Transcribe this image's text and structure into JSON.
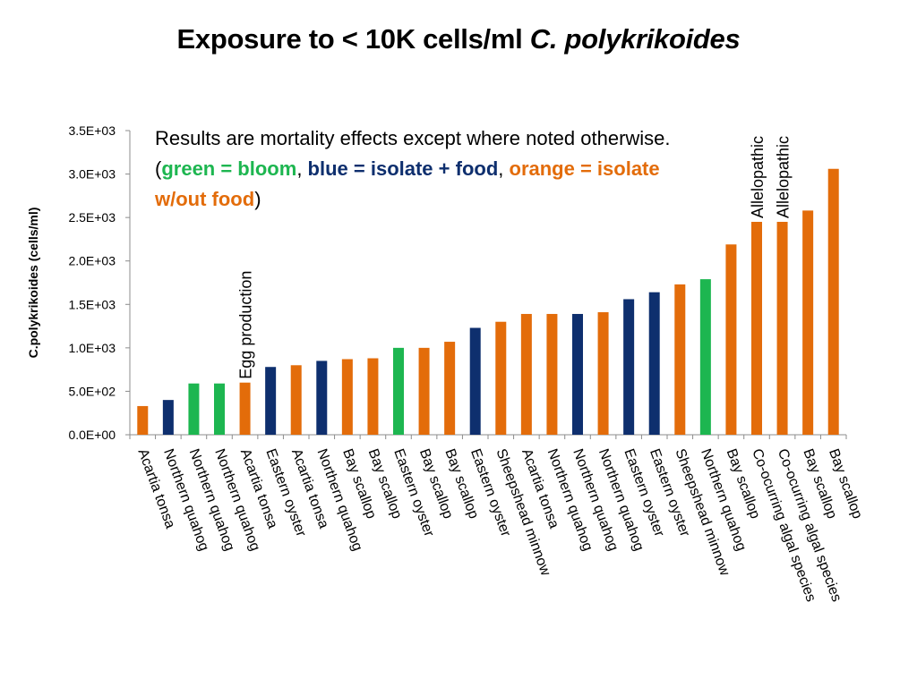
{
  "title": {
    "text": "Exposure to < 10K cells/ml ",
    "italic": "C. polykrikoides"
  },
  "note": {
    "line1": "Results are mortality effects except where noted otherwise.",
    "open_paren": "(",
    "green_text": "green  = bloom",
    "sep1": ", ",
    "blue_text": "blue = isolate + food",
    "sep2": ", ",
    "orange_text": "orange = isolate  w/out food",
    "close_paren": ")"
  },
  "colors": {
    "bloom": "#1db650",
    "isolate_food": "#0e2f6e",
    "isolate_no_food": "#e36c0a"
  },
  "chart_data": {
    "type": "bar",
    "ylabel": "C.polykrikoides (cells/ml)",
    "xlabel": "",
    "ylim": [
      0,
      3500
    ],
    "yticks": [
      {
        "value": 0,
        "label": "0.0E+00"
      },
      {
        "value": 500,
        "label": "5.0E+02"
      },
      {
        "value": 1000,
        "label": "1.0E+03"
      },
      {
        "value": 1500,
        "label": "1.5E+03"
      },
      {
        "value": 2000,
        "label": "2.0E+03"
      },
      {
        "value": 2500,
        "label": "2.5E+03"
      },
      {
        "value": 3000,
        "label": "3.0E+03"
      },
      {
        "value": 3500,
        "label": "3.5E+03"
      }
    ],
    "grid": false,
    "categories": [
      "Acartia tonsa",
      "Northern quahog",
      "Northern quahog",
      "Northern quahog",
      "Acartia tonsa",
      "Eastern oyster",
      "Acartia tonsa",
      "Northern quahog",
      "Bay scallop",
      "Bay scallop",
      "Eastern oyster",
      "Bay scallop",
      "Bay scallop",
      "Eastern oyster",
      "Sheepshead minnow",
      "Acartia tonsa",
      "Northern quahog",
      "Northern quahog",
      "Northern quahog",
      "Eastern oyster",
      "Eastern oyster",
      "Sheepshead minnow",
      "Northern quahog",
      "Bay scallop",
      "Co-ocurring algal species",
      "Co-ocurring algal species",
      "Bay scallop",
      "Bay scallop"
    ],
    "values": [
      330,
      400,
      590,
      590,
      600,
      780,
      800,
      850,
      870,
      880,
      1000,
      1000,
      1070,
      1230,
      1300,
      1390,
      1390,
      1390,
      1410,
      1560,
      1640,
      1730,
      1790,
      2190,
      2450,
      2450,
      2580,
      3060
    ],
    "groups": [
      "isolate_no_food",
      "isolate_food",
      "bloom",
      "bloom",
      "isolate_no_food",
      "isolate_food",
      "isolate_no_food",
      "isolate_food",
      "isolate_no_food",
      "isolate_no_food",
      "bloom",
      "isolate_no_food",
      "isolate_no_food",
      "isolate_food",
      "isolate_no_food",
      "isolate_no_food",
      "isolate_no_food",
      "isolate_food",
      "isolate_no_food",
      "isolate_food",
      "isolate_food",
      "isolate_no_food",
      "bloom",
      "isolate_no_food",
      "isolate_no_food",
      "isolate_no_food",
      "isolate_no_food",
      "isolate_no_food"
    ],
    "annotations": [
      {
        "bar_index": 4,
        "text": "Egg production"
      },
      {
        "bar_index": 24,
        "text": "Allelopathic"
      },
      {
        "bar_index": 25,
        "text": "Allelopathic"
      }
    ]
  }
}
